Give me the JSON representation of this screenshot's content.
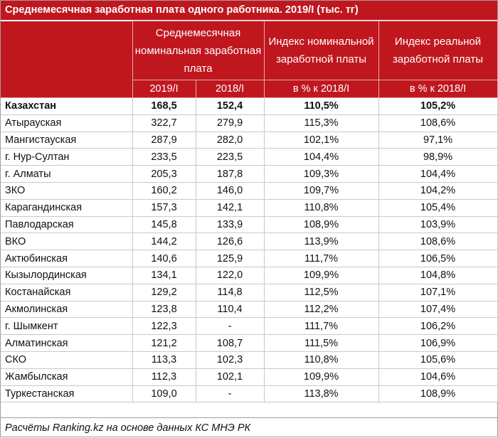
{
  "title": "Среднемесячная заработная плата одного работника. 2019/I (тыс. тг)",
  "headers": {
    "nominal": "Среднемесячная номинальная заработная плата",
    "index_nominal": "Индекс номинальной заработной платы",
    "index_real": "Индекс реальной заработной платы",
    "sub": [
      "2019/I",
      "2018/I",
      "в % к 2018/I",
      "в % к 2018/I"
    ]
  },
  "rows": [
    {
      "name": "Казахстан",
      "v2019": "168,5",
      "v2018": "152,4",
      "idx_nom": "110,5%",
      "idx_real": "105,2%"
    },
    {
      "name": "Атырауская",
      "v2019": "322,7",
      "v2018": "279,9",
      "idx_nom": "115,3%",
      "idx_real": "108,6%"
    },
    {
      "name": "Мангистауская",
      "v2019": "287,9",
      "v2018": "282,0",
      "idx_nom": "102,1%",
      "idx_real": "97,1%"
    },
    {
      "name": "г. Нур-Султан",
      "v2019": "233,5",
      "v2018": "223,5",
      "idx_nom": "104,4%",
      "idx_real": "98,9%"
    },
    {
      "name": "г. Алматы",
      "v2019": "205,3",
      "v2018": "187,8",
      "idx_nom": "109,3%",
      "idx_real": "104,4%"
    },
    {
      "name": "ЗКО",
      "v2019": "160,2",
      "v2018": "146,0",
      "idx_nom": "109,7%",
      "idx_real": "104,2%"
    },
    {
      "name": "Карагандинская",
      "v2019": "157,3",
      "v2018": "142,1",
      "idx_nom": "110,8%",
      "idx_real": "105,4%"
    },
    {
      "name": "Павлодарская",
      "v2019": "145,8",
      "v2018": "133,9",
      "idx_nom": "108,9%",
      "idx_real": "103,9%"
    },
    {
      "name": "ВКО",
      "v2019": "144,2",
      "v2018": "126,6",
      "idx_nom": "113,9%",
      "idx_real": "108,6%"
    },
    {
      "name": "Актюбинская",
      "v2019": "140,6",
      "v2018": "125,9",
      "idx_nom": "111,7%",
      "idx_real": "106,5%"
    },
    {
      "name": "Кызылординская",
      "v2019": "134,1",
      "v2018": "122,0",
      "idx_nom": "109,9%",
      "idx_real": "104,8%"
    },
    {
      "name": "Костанайская",
      "v2019": "129,2",
      "v2018": "114,8",
      "idx_nom": "112,5%",
      "idx_real": "107,1%"
    },
    {
      "name": "Акмолинская",
      "v2019": "123,8",
      "v2018": "110,4",
      "idx_nom": "112,2%",
      "idx_real": "107,4%"
    },
    {
      "name": "г. Шымкент",
      "v2019": "122,3",
      "v2018": "-",
      "idx_nom": "111,7%",
      "idx_real": "106,2%"
    },
    {
      "name": "Алматинская",
      "v2019": "121,2",
      "v2018": "108,7",
      "idx_nom": "111,5%",
      "idx_real": "106,9%"
    },
    {
      "name": "СКО",
      "v2019": "113,3",
      "v2018": "102,3",
      "idx_nom": "110,8%",
      "idx_real": "105,6%"
    },
    {
      "name": "Жамбылская",
      "v2019": "112,3",
      "v2018": "102,1",
      "idx_nom": "109,9%",
      "idx_real": "104,6%"
    },
    {
      "name": "Туркестанская",
      "v2019": "109,0",
      "v2018": "-",
      "idx_nom": "113,8%",
      "idx_real": "108,9%"
    }
  ],
  "source": "Расчёты Ranking.kz на основе данных КС МНЭ РК",
  "colors": {
    "header_bg": "#c0171f",
    "header_text": "#ffffff"
  }
}
